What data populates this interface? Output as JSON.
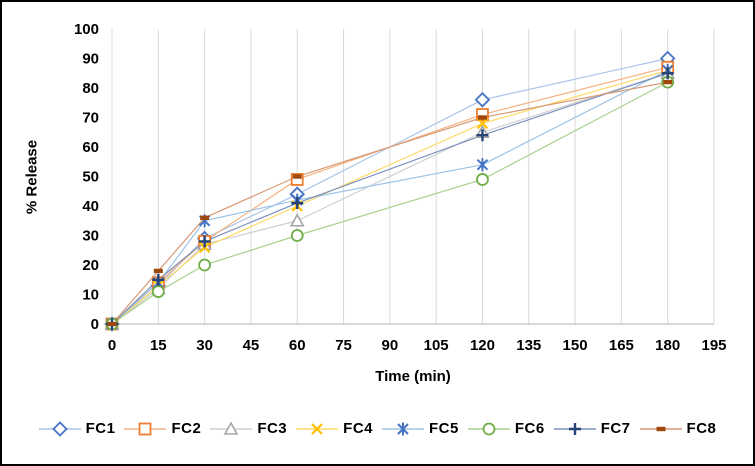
{
  "frame": {
    "background": "#FFFFFF",
    "border_color": "#000000"
  },
  "chart_data": {
    "type": "line",
    "title": "",
    "xlabel": "Time (min)",
    "ylabel": "% Release",
    "xlim": [
      0,
      195
    ],
    "ylim": [
      0,
      100
    ],
    "x_ticks": [
      0,
      15,
      30,
      45,
      60,
      75,
      90,
      105,
      120,
      135,
      150,
      165,
      180,
      195
    ],
    "y_ticks": [
      0,
      10,
      20,
      30,
      40,
      50,
      60,
      70,
      80,
      90,
      100
    ],
    "grid": "vertical-gridlines-only",
    "gridline_color": "#D9D9D9",
    "axis_color": "#BFBFBF",
    "text_color": "#000000",
    "legend_position": "bottom",
    "x": [
      0,
      15,
      30,
      60,
      120,
      180
    ],
    "series": [
      {
        "name": "FC1",
        "marker": "diamond",
        "color": "#4472C4",
        "line_color": "#A8C4E8",
        "values": [
          0,
          13,
          29,
          44,
          76,
          90
        ]
      },
      {
        "name": "FC2",
        "marker": "square",
        "color": "#ED7D31",
        "line_color": "#F4B183",
        "values": [
          0,
          14,
          28,
          49,
          71,
          87
        ]
      },
      {
        "name": "FC3",
        "marker": "triangle",
        "color": "#A5A5A5",
        "line_color": "#CFCFCF",
        "values": [
          0,
          12,
          27,
          35,
          65,
          85
        ]
      },
      {
        "name": "FC4",
        "marker": "x",
        "color": "#FFC000",
        "line_color": "#FFD966",
        "values": [
          0,
          13,
          26,
          40,
          68,
          86
        ]
      },
      {
        "name": "FC5",
        "marker": "asterisk-x",
        "color": "#4472C4",
        "line_color": "#9DC3E6",
        "values": [
          0,
          14,
          35,
          42,
          54,
          86
        ]
      },
      {
        "name": "FC6",
        "marker": "circle",
        "color": "#70AD47",
        "line_color": "#A9D18E",
        "values": [
          0,
          11,
          20,
          30,
          49,
          82
        ]
      },
      {
        "name": "FC7",
        "marker": "plus",
        "color": "#264478",
        "line_color": "#7D92BE",
        "values": [
          0,
          15,
          28,
          41,
          64,
          85
        ]
      },
      {
        "name": "FC8",
        "marker": "dash",
        "color": "#9E480E",
        "line_color": "#D89A76",
        "values": [
          0,
          18,
          36,
          50,
          70,
          82
        ]
      }
    ]
  }
}
